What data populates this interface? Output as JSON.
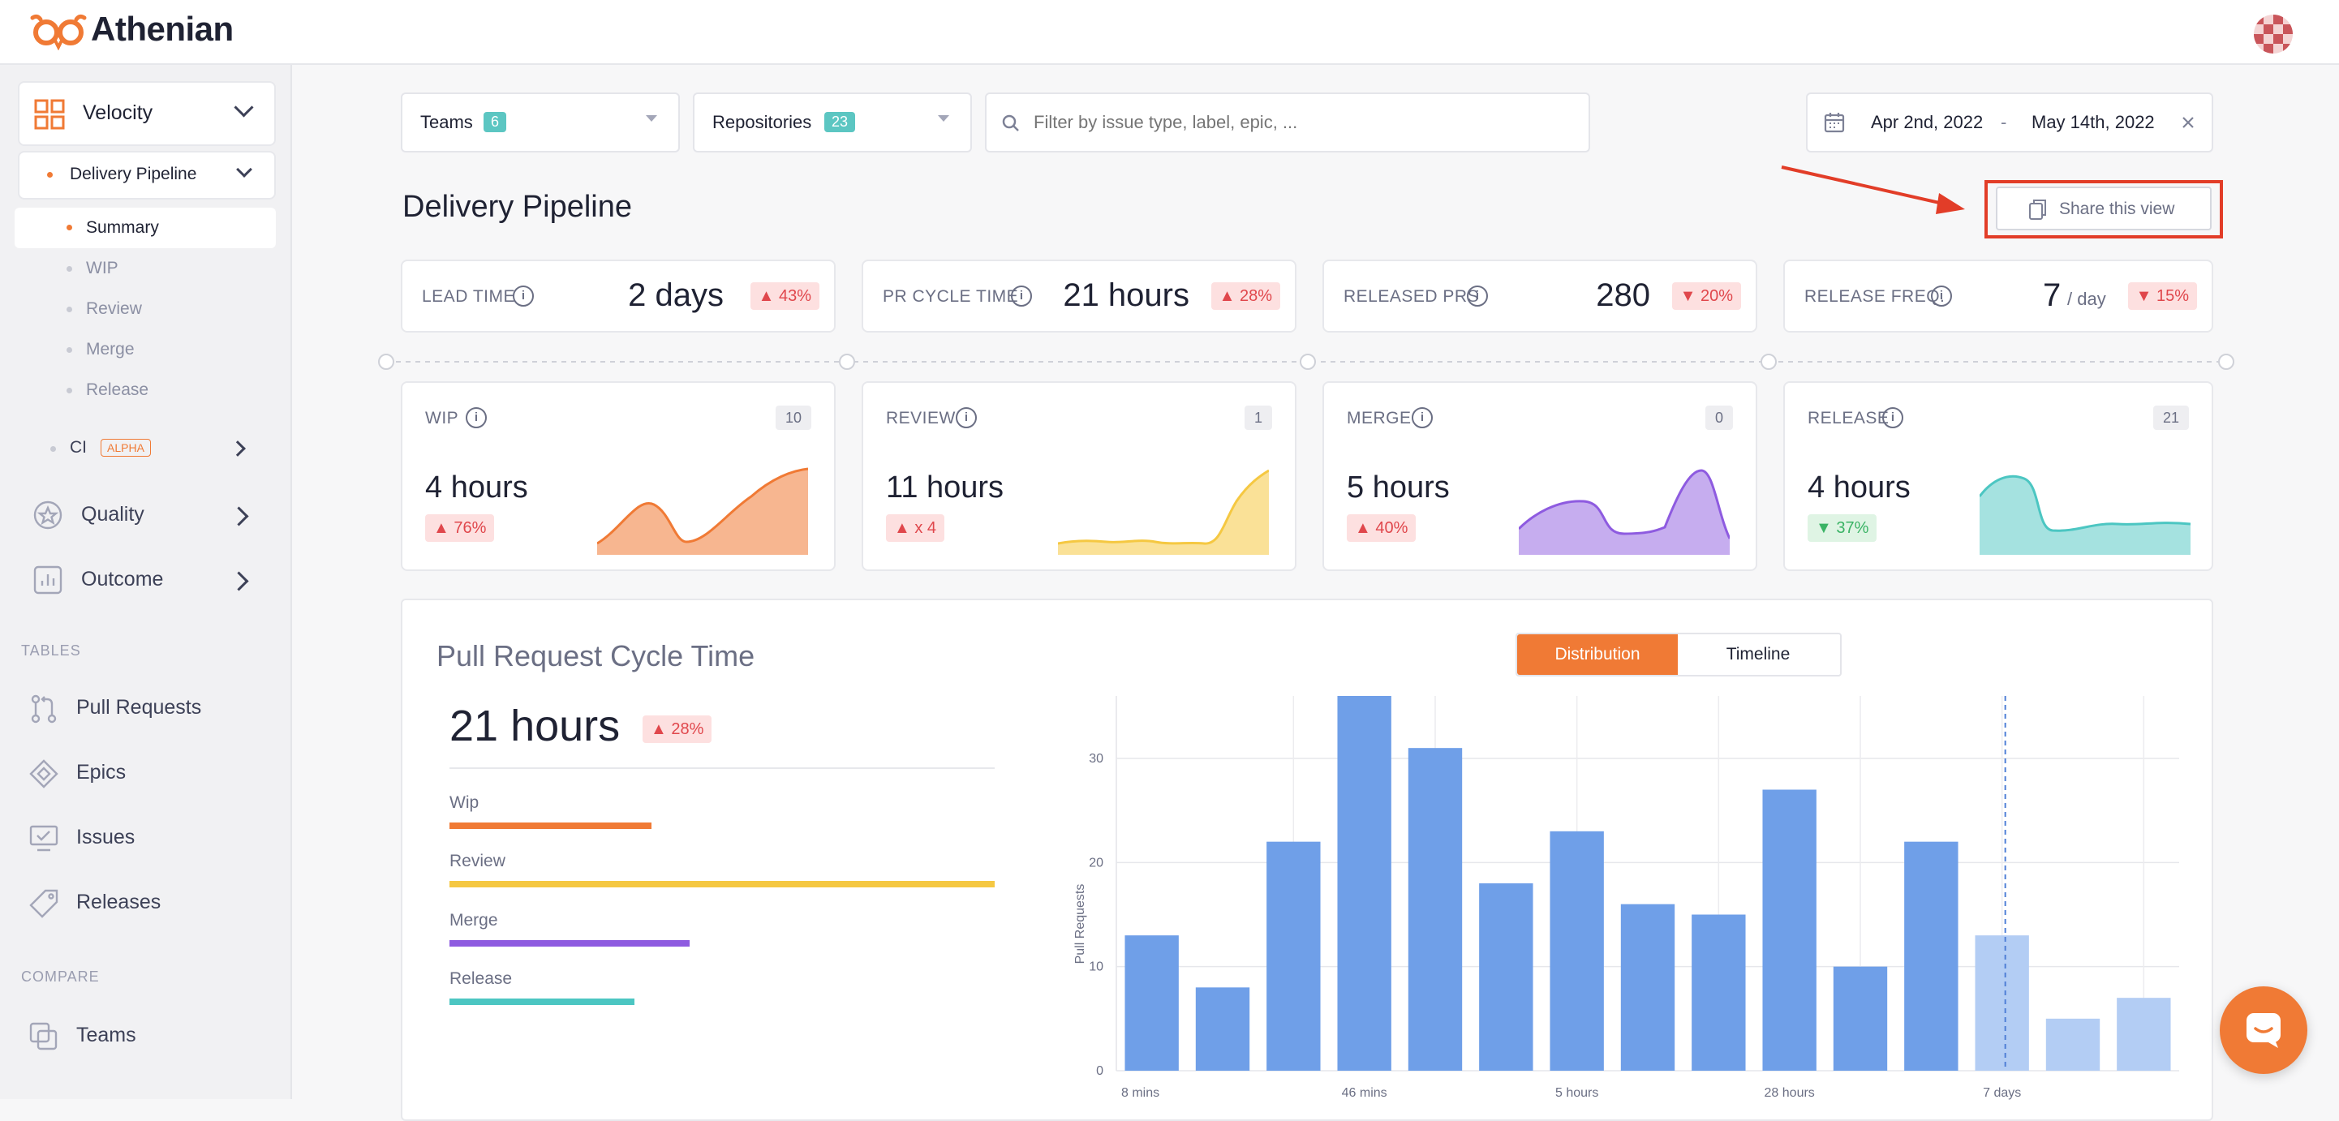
{
  "app": {
    "name": "Athenian"
  },
  "sidebar": {
    "velocity": "Velocity",
    "delivery_pipeline": "Delivery Pipeline",
    "subitems": [
      "Summary",
      "WIP",
      "Review",
      "Merge",
      "Release"
    ],
    "ci": "CI",
    "ci_badge": "ALPHA",
    "quality": "Quality",
    "outcome": "Outcome",
    "tables_header": "TABLES",
    "tables": [
      "Pull Requests",
      "Epics",
      "Issues",
      "Releases"
    ],
    "compare_header": "COMPARE",
    "compare": [
      "Teams"
    ]
  },
  "filters": {
    "teams_label": "Teams",
    "teams_count": "6",
    "repos_label": "Repositories",
    "repos_count": "23",
    "search_placeholder": "Filter by issue type, label, epic, ...",
    "date_from": "Apr 2nd, 2022",
    "date_sep": "-",
    "date_to": "May 14th, 2022"
  },
  "page": {
    "title": "Delivery Pipeline",
    "share_label": "Share this view"
  },
  "metrics": [
    {
      "label": "LEAD TIME",
      "value": "2 days",
      "unit": "",
      "change": "43%",
      "direction": "up"
    },
    {
      "label": "PR CYCLE TIME",
      "value": "21 hours",
      "unit": "",
      "change": "28%",
      "direction": "up"
    },
    {
      "label": "RELEASED PRS",
      "value": "280",
      "unit": "",
      "change": "20%",
      "direction": "down"
    },
    {
      "label": "RELEASE FREQ.",
      "value": "7",
      "unit": "/ day",
      "change": "15%",
      "direction": "down"
    }
  ],
  "stages": [
    {
      "label": "WIP",
      "count": "10",
      "value": "4 hours",
      "change": "76%",
      "direction": "up",
      "color": "#f07a35"
    },
    {
      "label": "REVIEW",
      "count": "1",
      "value": "11 hours",
      "change": "x 4",
      "direction": "up",
      "color": "#f5c842"
    },
    {
      "label": "MERGE",
      "count": "0",
      "value": "5 hours",
      "change": "40%",
      "direction": "up",
      "color": "#8e5be0"
    },
    {
      "label": "RELEASE",
      "count": "21",
      "value": "4 hours",
      "change": "37%",
      "direction": "down",
      "color": "#4cc6c2"
    }
  ],
  "cycle": {
    "title": "Pull Request Cycle Time",
    "value": "21 hours",
    "change": "28%",
    "tab_distribution": "Distribution",
    "tab_timeline": "Timeline",
    "breakdown": [
      {
        "label": "Wip",
        "fraction": 0.37,
        "color": "#f07a35"
      },
      {
        "label": "Review",
        "fraction": 1.0,
        "color": "#f5c842"
      },
      {
        "label": "Merge",
        "fraction": 0.44,
        "color": "#8e5be0"
      },
      {
        "label": "Release",
        "fraction": 0.34,
        "color": "#4cc6c2"
      }
    ]
  },
  "chart_data": {
    "type": "bar",
    "ylabel": "Pull Requests",
    "ylim": [
      0,
      36
    ],
    "yticks": [
      0,
      10,
      20,
      30
    ],
    "x_tick_labels": [
      {
        "index": 0,
        "label": "8 mins"
      },
      {
        "index": 3,
        "label": "46 mins"
      },
      {
        "index": 6,
        "label": "5 hours"
      },
      {
        "index": 9,
        "label": "28 hours"
      },
      {
        "index": 12,
        "label": "7 days"
      }
    ],
    "values": [
      13,
      8,
      22,
      36,
      31,
      18,
      23,
      16,
      15,
      27,
      10,
      22,
      13,
      5,
      7
    ],
    "highlighted_from_index": 12,
    "bar_color": "#6f9fe8",
    "bar_color_light": "#b3cdf4",
    "marker_index": 12,
    "grid": true
  }
}
